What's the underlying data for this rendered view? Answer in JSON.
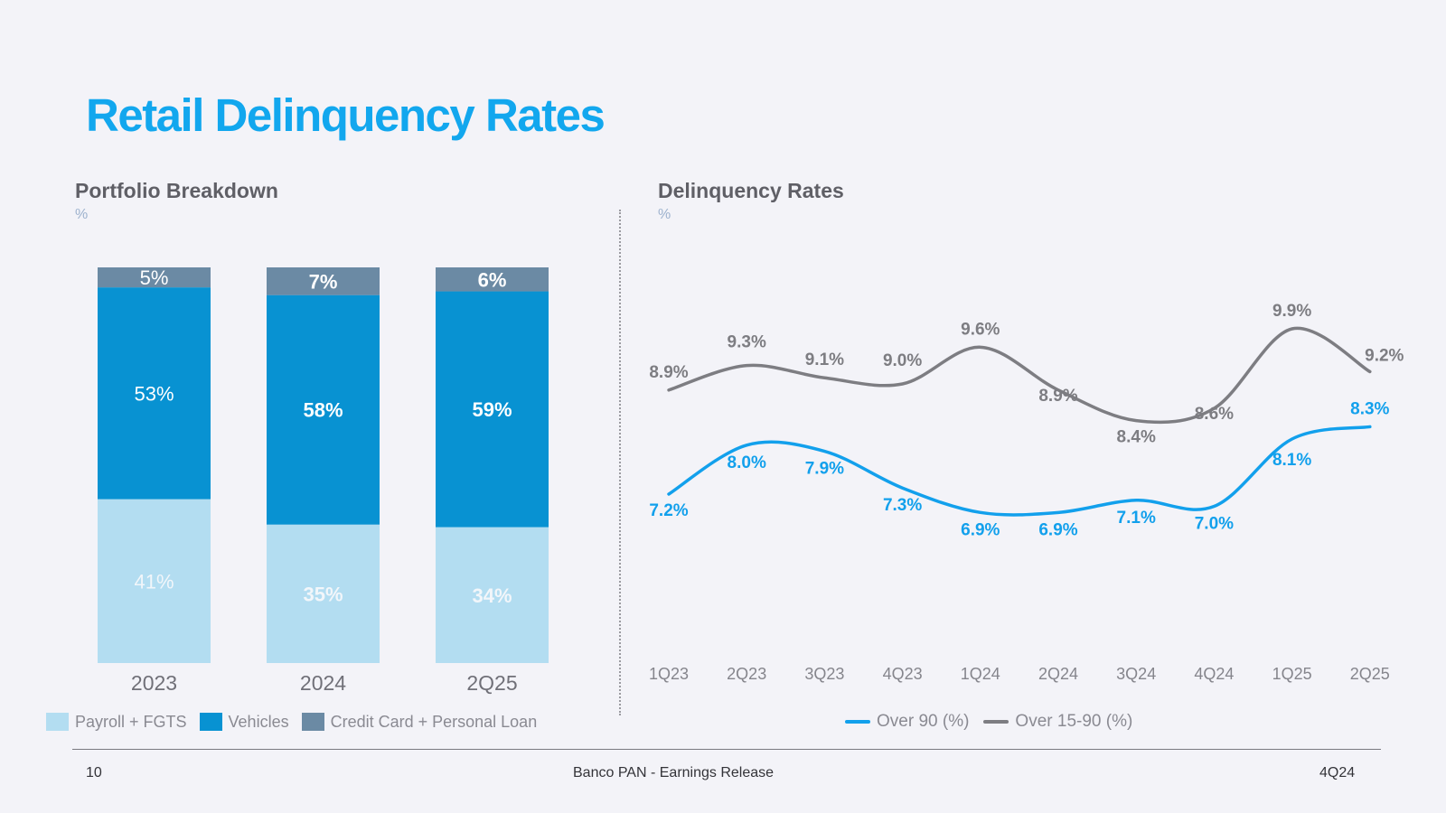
{
  "header": {
    "title": "Retail Delinquency Rates"
  },
  "left": {
    "title": "Portfolio Breakdown",
    "unit": "%"
  },
  "right": {
    "title": "Delinquency Rates",
    "unit": "%"
  },
  "legend_left": [
    {
      "label": "Payroll + FGTS",
      "color": "#b3ddf1"
    },
    {
      "label": "Vehicles",
      "color": "#0892d2"
    },
    {
      "label": "Credit Card + Personal Loan",
      "color": "#6b8aa4"
    }
  ],
  "legend_right": [
    {
      "label": "Over 90 (%)",
      "color": "#12a0ec"
    },
    {
      "label": "Over 15-90 (%)",
      "color": "#7d7d82"
    }
  ],
  "footer": {
    "page": "10",
    "center": "Banco PAN - Earnings Release",
    "right": "4Q24"
  },
  "chart_data": [
    {
      "type": "bar",
      "stacked": true,
      "title": "Portfolio Breakdown",
      "ylabel": "%",
      "categories": [
        "2023",
        "2024",
        "2Q25"
      ],
      "series": [
        {
          "name": "Payroll + FGTS",
          "values": [
            41,
            35,
            34
          ],
          "labels": [
            "41%",
            "35%",
            "34%"
          ],
          "color": "#b3ddf1"
        },
        {
          "name": "Vehicles",
          "values": [
            53,
            58,
            59
          ],
          "labels": [
            "53%",
            "58%",
            "59%"
          ],
          "color": "#0892d2"
        },
        {
          "name": "Credit Card + Personal Loan",
          "values": [
            5,
            7,
            6
          ],
          "labels": [
            "5%",
            "7%",
            "6%"
          ],
          "color": "#6b8aa4"
        }
      ],
      "ylim": [
        0,
        100
      ]
    },
    {
      "type": "line",
      "title": "Delinquency Rates",
      "ylabel": "%",
      "x": [
        "1Q23",
        "2Q23",
        "3Q23",
        "4Q23",
        "1Q24",
        "2Q24",
        "3Q24",
        "4Q24",
        "1Q25",
        "2Q25"
      ],
      "series": [
        {
          "name": "Over 15-90 (%)",
          "values": [
            8.9,
            9.3,
            9.1,
            9.0,
            9.6,
            8.9,
            8.4,
            8.6,
            9.9,
            9.2
          ],
          "labels": [
            "8.9%",
            "9.3%",
            "9.1%",
            "9.0%",
            "9.6%",
            "8.9%",
            "8.4%",
            "8.6%",
            "9.9%",
            "9.2%"
          ],
          "color": "#7d7d82"
        },
        {
          "name": "Over 90 (%)",
          "values": [
            7.2,
            8.0,
            7.9,
            7.3,
            6.9,
            6.9,
            7.1,
            7.0,
            8.1,
            8.3
          ],
          "labels": [
            "7.2%",
            "8.0%",
            "7.9%",
            "7.3%",
            "6.9%",
            "6.9%",
            "7.1%",
            "7.0%",
            "8.1%",
            "8.3%"
          ],
          "color": "#12a0ec"
        }
      ],
      "ylim": [
        4.5,
        10.8
      ]
    }
  ]
}
